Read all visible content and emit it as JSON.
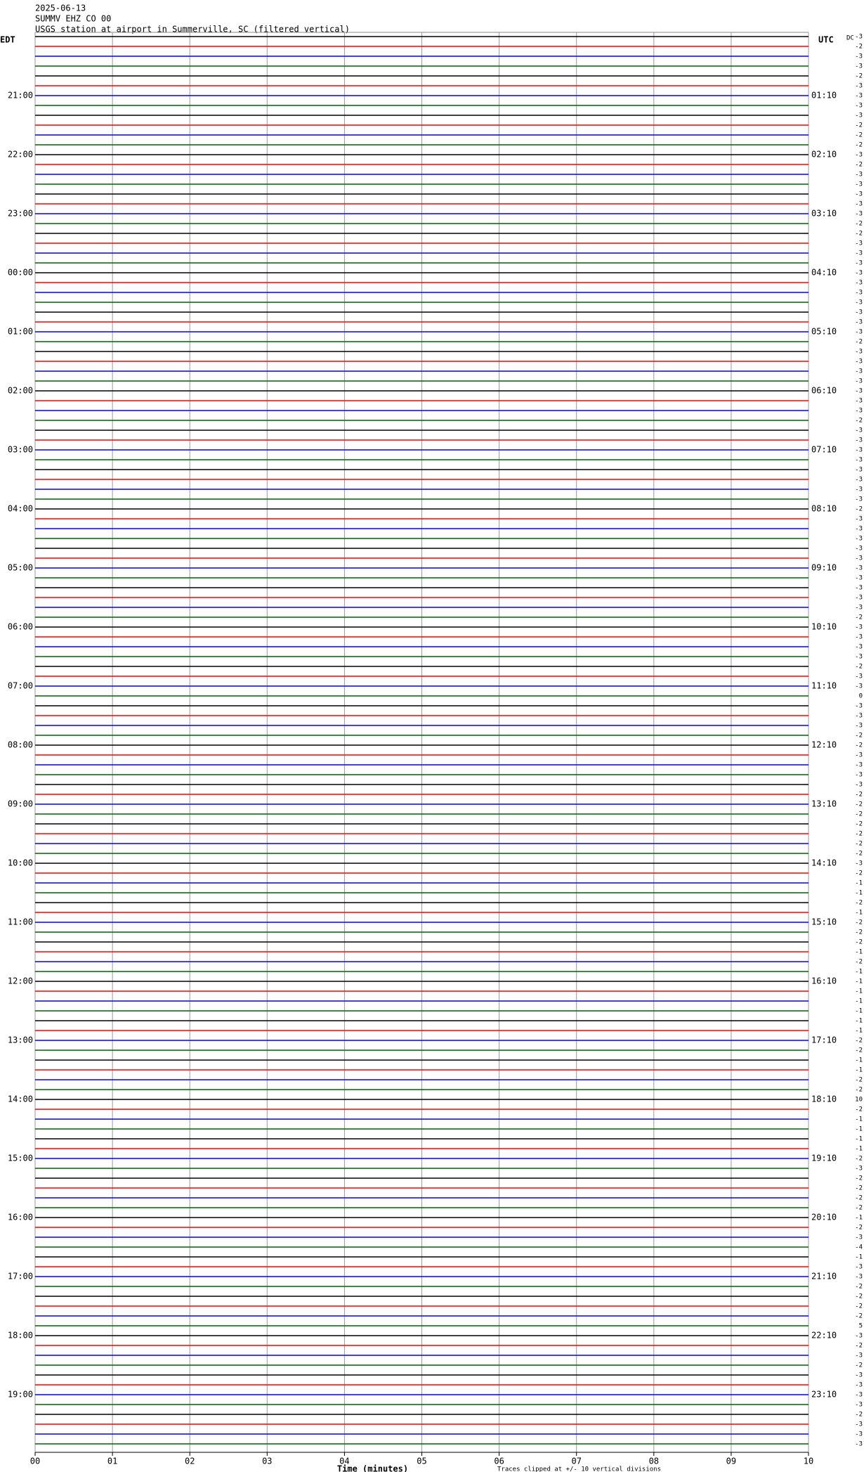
{
  "chart_data": {
    "type": "helicorder",
    "title_lines": [
      "2025-06-13",
      "SUMMV EHZ CO 00",
      "USGS station at airport in Summerville, SC (filtered vertical)"
    ],
    "left_header": "EDT",
    "right_header": "UTC",
    "dc_header": "DC",
    "edt_labels": [
      "21:00",
      "22:00",
      "23:00",
      "00:00",
      "01:00",
      "02:00",
      "03:00",
      "04:00",
      "05:00",
      "06:00",
      "07:00",
      "08:00",
      "09:00",
      "10:00",
      "11:00",
      "12:00",
      "13:00",
      "14:00",
      "15:00",
      "16:00",
      "17:00",
      "18:00",
      "19:00"
    ],
    "utc_labels": [
      "01:10",
      "02:10",
      "03:10",
      "04:10",
      "05:10",
      "06:10",
      "07:10",
      "08:10",
      "09:10",
      "10:10",
      "11:10",
      "12:10",
      "13:10",
      "14:10",
      "15:10",
      "16:10",
      "17:10",
      "18:10",
      "19:10",
      "20:10",
      "21:10",
      "22:10",
      "23:10"
    ],
    "dc_offsets": [
      -3,
      -2,
      -3,
      -3,
      -2,
      -3,
      -3,
      -3,
      -3,
      -2,
      -2,
      -2,
      -3,
      -2,
      -3,
      -3,
      -3,
      -3,
      -3,
      -2,
      -2,
      -3,
      -3,
      -3,
      -3,
      -3,
      -3,
      -3,
      -3,
      -3,
      -3,
      -2,
      -3,
      -3,
      -3,
      -3,
      -3,
      -3,
      -3,
      -2,
      -3,
      -3,
      -3,
      -3,
      -3,
      -3,
      -3,
      -3,
      -2,
      -3,
      -3,
      -3,
      -3,
      -3,
      -3,
      -3,
      -3,
      -3,
      -3,
      -2,
      -3,
      -3,
      -3,
      -3,
      -2,
      -3,
      -3,
      0,
      -3,
      -3,
      -3,
      -2,
      -2,
      -3,
      -3,
      -3,
      -3,
      -2,
      -2,
      -2,
      -2,
      -2,
      -2,
      -2,
      -3,
      -2,
      -1,
      -1,
      -2,
      -1,
      -2,
      -2,
      -2,
      -1,
      -2,
      -1,
      -1,
      -1,
      -1,
      -1,
      -1,
      -1,
      -2,
      -2,
      -1,
      -1,
      -2,
      -2,
      10,
      -2,
      -1,
      -1,
      -1,
      -1,
      -2,
      -3,
      -2,
      -2,
      -2,
      -2,
      -1,
      -2,
      -3,
      -4,
      -1,
      -3,
      -3,
      -2,
      -2,
      -2,
      -2,
      5,
      -3,
      -2,
      -3,
      -2,
      -3,
      -3,
      -3,
      -3,
      -2,
      -3,
      -3,
      -3
    ],
    "trace_colors": [
      "#000000",
      "#ff0000",
      "#0000ff",
      "#006400"
    ],
    "xlabel": "Time (minutes)",
    "note": "Traces clipped at +/- 10 vertical divisions",
    "xlim": [
      0,
      10
    ],
    "xticks": [
      {
        "value": 0,
        "label": "00"
      },
      {
        "value": 1,
        "label": "01"
      },
      {
        "value": 2,
        "label": "02"
      },
      {
        "value": 3,
        "label": "03"
      },
      {
        "value": 4,
        "label": "04"
      },
      {
        "value": 5,
        "label": "05"
      },
      {
        "value": 6,
        "label": "06"
      },
      {
        "value": 7,
        "label": "07"
      },
      {
        "value": 8,
        "label": "08"
      },
      {
        "value": 9,
        "label": "09"
      },
      {
        "value": 10,
        "label": "10"
      }
    ],
    "grid": true
  }
}
